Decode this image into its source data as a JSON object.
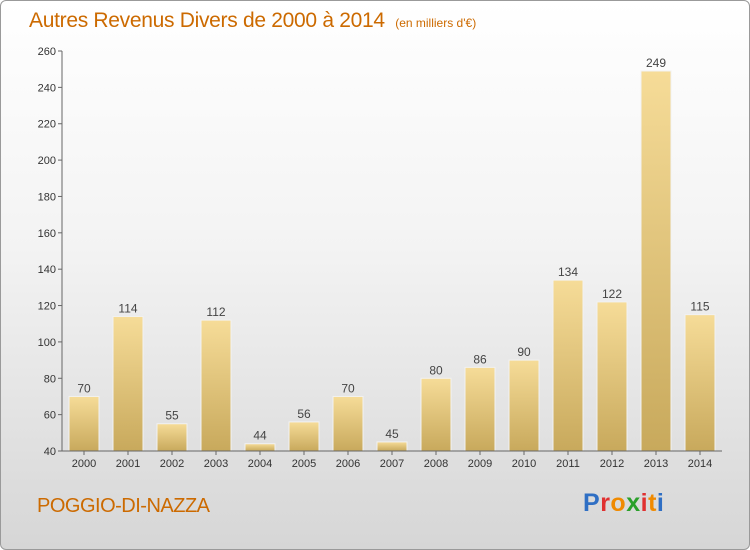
{
  "title": "Autres Revenus Divers de 2000 à 2014",
  "unit_note": "(en milliers d'€)",
  "commune": "POGGIO-DI-NAZZA",
  "logo": {
    "text": "Proxiti",
    "colors": [
      "#2f6fc4",
      "#e03030",
      "#f08a00",
      "#2aa02a",
      "#e03030",
      "#f08a00",
      "#2f6fc4"
    ]
  },
  "chart_data": {
    "type": "bar",
    "categories": [
      "2000",
      "2001",
      "2002",
      "2003",
      "2004",
      "2005",
      "2006",
      "2007",
      "2008",
      "2009",
      "2010",
      "2011",
      "2012",
      "2013",
      "2014"
    ],
    "values": [
      70,
      114,
      55,
      112,
      44,
      56,
      70,
      45,
      80,
      86,
      90,
      134,
      122,
      249,
      115
    ],
    "ylim": [
      40,
      260
    ],
    "yticks": [
      40,
      60,
      80,
      100,
      120,
      140,
      160,
      180,
      200,
      220,
      240,
      260
    ],
    "grid": false,
    "bar_color_top": "#f6dc98",
    "bar_color_bottom": "#c8a95c",
    "label_color": "#444444"
  }
}
